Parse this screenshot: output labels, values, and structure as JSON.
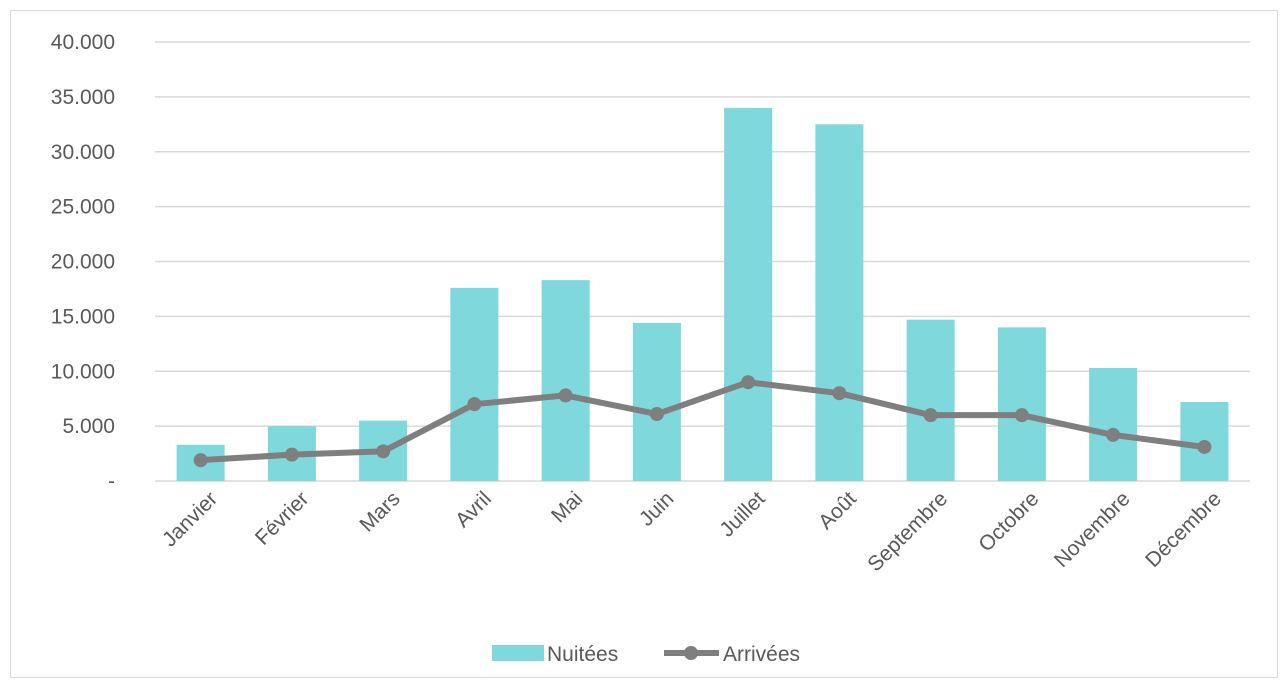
{
  "chart_data": {
    "type": "bar",
    "categories": [
      "Janvier",
      "Février",
      "Mars",
      "Avril",
      "Mai",
      "Juin",
      "Juillet",
      "Août",
      "Septembre",
      "Octobre",
      "Novembre",
      "Décembre"
    ],
    "series": [
      {
        "name": "Nuitées",
        "type": "bar",
        "color": "#7fd8dc",
        "values": [
          3300,
          5000,
          5500,
          17600,
          18300,
          14400,
          34000,
          32500,
          14700,
          14000,
          10300,
          7200
        ]
      },
      {
        "name": "Arrivées",
        "type": "line",
        "color": "#7f7f7f",
        "values": [
          1900,
          2400,
          2700,
          7000,
          7800,
          6100,
          9000,
          8000,
          6000,
          6000,
          4200,
          3100
        ]
      }
    ],
    "y_ticks": [
      0,
      5000,
      10000,
      15000,
      20000,
      25000,
      30000,
      35000,
      40000
    ],
    "y_tick_labels": [
      "-",
      "5.000",
      "10.000",
      "15.000",
      "20.000",
      "25.000",
      "30.000",
      "35.000",
      "40.000"
    ],
    "ylim": [
      0,
      40000
    ],
    "title": "",
    "xlabel": "",
    "ylabel": "",
    "grid": true,
    "legend": "bottom-center"
  }
}
